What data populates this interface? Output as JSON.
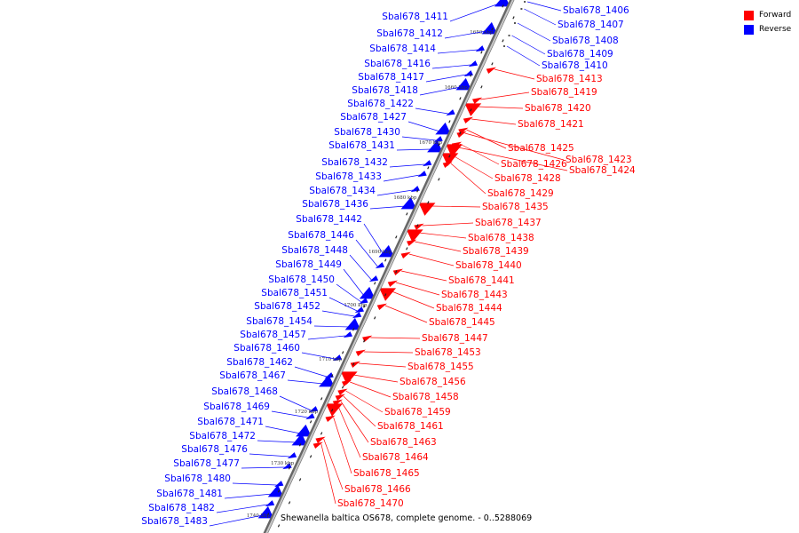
{
  "legend": {
    "forward_label": "Forward",
    "reverse_label": "Reverse",
    "forward_color": "#ff0000",
    "reverse_color": "#0000ff"
  },
  "caption": "Shewanella baltica OS678, complete genome. - 0..5288069",
  "ticks": [
    "1650 kbp",
    "1660 kbp",
    "1670 kbp",
    "1680 kbp",
    "1690 kbp",
    "1700 kbp",
    "1710 kbp",
    "1720 kbp",
    "1730 kbp",
    "1740 kbp"
  ],
  "reverse_genes": [
    "Sbal678_1411",
    "Sbal678_1412",
    "Sbal678_1414",
    "Sbal678_1416",
    "Sbal678_1417",
    "Sbal678_1418",
    "Sbal678_1422",
    "Sbal678_1427",
    "Sbal678_1430",
    "Sbal678_1431",
    "Sbal678_1432",
    "Sbal678_1433",
    "Sbal678_1434",
    "Sbal678_1436",
    "Sbal678_1442",
    "Sbal678_1446",
    "Sbal678_1448",
    "Sbal678_1449",
    "Sbal678_1450",
    "Sbal678_1451",
    "Sbal678_1452",
    "Sbal678_1454",
    "Sbal678_1457",
    "Sbal678_1460",
    "Sbal678_1462",
    "Sbal678_1467",
    "Sbal678_1468",
    "Sbal678_1469",
    "Sbal678_1471",
    "Sbal678_1472",
    "Sbal678_1476",
    "Sbal678_1477",
    "Sbal678_1480",
    "Sbal678_1481",
    "Sbal678_1482",
    "Sbal678_1483"
  ],
  "reverse_top_genes": [
    "Sbal678_1406",
    "Sbal678_1407",
    "Sbal678_1408",
    "Sbal678_1409",
    "Sbal678_1410"
  ],
  "forward_genes": [
    "Sbal678_1413",
    "Sbal678_1419",
    "Sbal678_1420",
    "Sbal678_1421",
    "Sbal678_1425",
    "Sbal678_1423",
    "Sbal678_1426",
    "Sbal678_1424",
    "Sbal678_1428",
    "Sbal678_1429",
    "Sbal678_1435",
    "Sbal678_1437",
    "Sbal678_1438",
    "Sbal678_1439",
    "Sbal678_1440",
    "Sbal678_1441",
    "Sbal678_1443",
    "Sbal678_1444",
    "Sbal678_1445",
    "Sbal678_1447",
    "Sbal678_1453",
    "Sbal678_1455",
    "Sbal678_1456",
    "Sbal678_1458",
    "Sbal678_1459",
    "Sbal678_1461",
    "Sbal678_1463",
    "Sbal678_1464",
    "Sbal678_1465",
    "Sbal678_1466",
    "Sbal678_1470"
  ]
}
